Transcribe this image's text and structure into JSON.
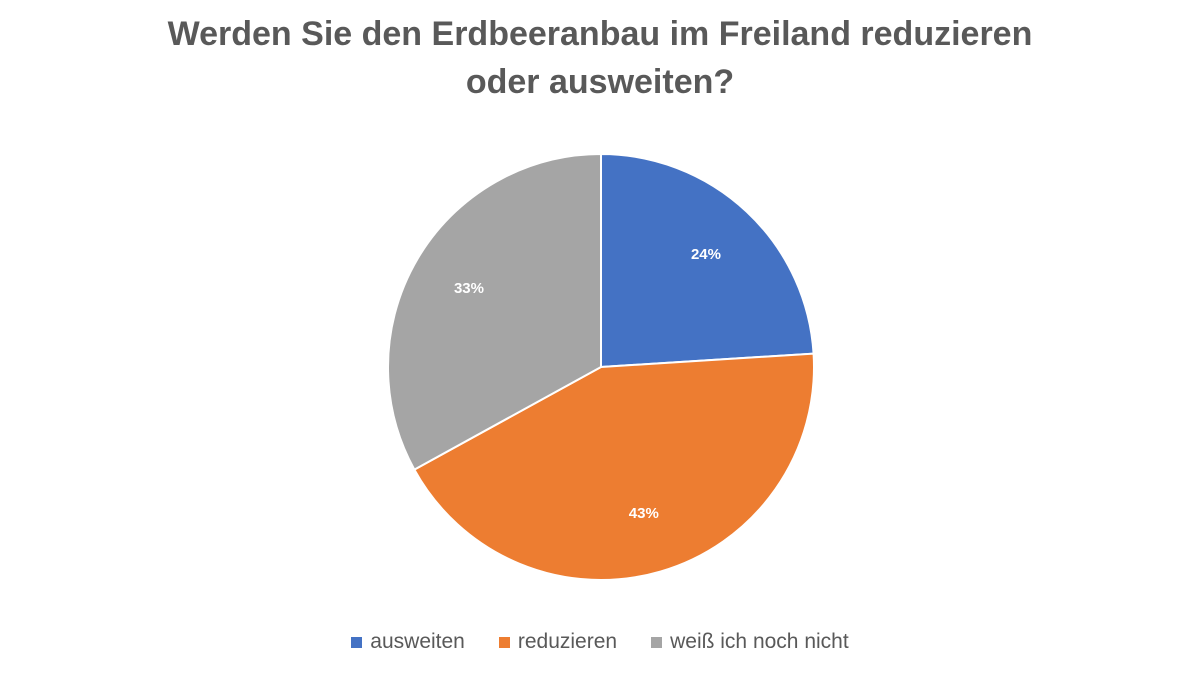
{
  "chart_data": {
    "type": "pie",
    "title_lines": [
      "Werden Sie den Erdbeeranbau im Freiland reduzieren",
      "oder ausweiten?"
    ],
    "categories": [
      "ausweiten",
      "reduzieren",
      "weiß ich noch nicht"
    ],
    "values": [
      24,
      43,
      33
    ],
    "data_labels": [
      "24%",
      "43%",
      "33%"
    ],
    "colors": [
      "#4472C4",
      "#ED7D31",
      "#A5A5A5"
    ],
    "legend_position": "bottom",
    "start_angle": "12 o'clock, clockwise"
  }
}
